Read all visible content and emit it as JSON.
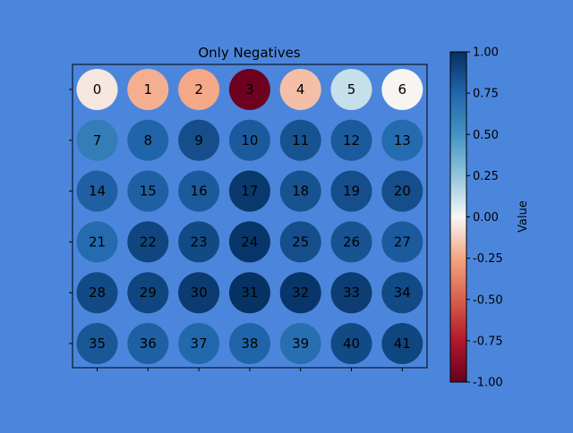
{
  "background_color": "#4c86dc",
  "chart_data": {
    "type": "heatmap",
    "title": "Only Negatives",
    "xlabel": "",
    "ylabel": "",
    "rows": 6,
    "cols": 7,
    "cell_labels": [
      "0",
      "1",
      "2",
      "3",
      "4",
      "5",
      "6",
      "7",
      "8",
      "9",
      "10",
      "11",
      "12",
      "13",
      "14",
      "15",
      "16",
      "17",
      "18",
      "19",
      "20",
      "21",
      "22",
      "23",
      "24",
      "25",
      "26",
      "27",
      "28",
      "29",
      "30",
      "31",
      "32",
      "33",
      "34",
      "35",
      "36",
      "37",
      "38",
      "39",
      "40",
      "41"
    ],
    "values": [
      [
        -0.05,
        -0.22,
        -0.24,
        -0.98,
        -0.17,
        0.12,
        -0.01
      ],
      [
        0.62,
        0.76,
        0.86,
        0.8,
        0.84,
        0.8,
        0.72
      ],
      [
        0.78,
        0.78,
        0.8,
        0.96,
        0.84,
        0.86,
        0.86
      ],
      [
        0.72,
        0.9,
        0.88,
        0.97,
        0.86,
        0.84,
        0.8
      ],
      [
        0.88,
        0.9,
        0.95,
        0.99,
        0.97,
        0.94,
        0.88
      ],
      [
        0.82,
        0.78,
        0.74,
        0.76,
        0.7,
        0.88,
        0.9
      ]
    ],
    "colormap": "RdBu",
    "colorbar": {
      "label": "Value",
      "vmin": -1.0,
      "vmax": 1.0,
      "ticks": [
        "-1.00",
        "-0.75",
        "-0.50",
        "-0.25",
        "0.00",
        "0.25",
        "0.50",
        "0.75",
        "1.00"
      ]
    },
    "grid": false,
    "x_tick_labels_visible": false,
    "y_tick_labels_visible": false
  }
}
